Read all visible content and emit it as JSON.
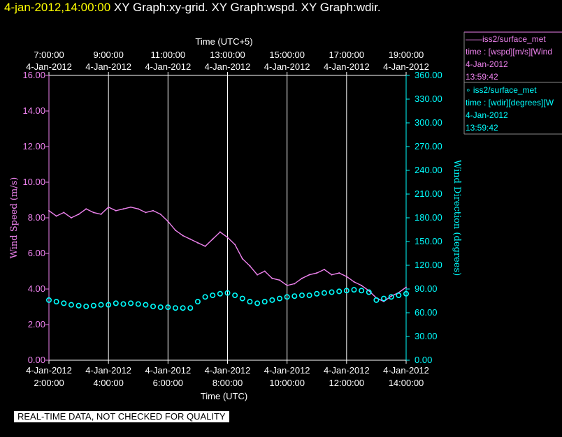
{
  "title": {
    "timestamp": "4-jan-2012,14:00:00",
    "graphs": "XY Graph:xy-grid.  XY Graph:wspd.  XY Graph:wdir."
  },
  "legend": [
    {
      "line": "——iss2/surface_met",
      "var": "time : [wspd][m/s][Wind",
      "date": "4-Jan-2012",
      "time": "13:59:42",
      "color": "#ee82ee"
    },
    {
      "line": "∘ iss2/surface_met",
      "var": "time : [wdir][degrees][W",
      "date": "4-Jan-2012",
      "time": "13:59:42",
      "color": "#00ffff"
    }
  ],
  "footer": "REAL-TIME DATA, NOT CHECKED FOR QUALITY",
  "chart_data": {
    "type": "line",
    "x_unit": "hours UTC, 4-Jan-2012",
    "xlim": [
      2.0,
      14.0
    ],
    "top_axis": {
      "label": "Time (UTC+5)",
      "ticks": [
        {
          "x": 2,
          "time": "7:00:00",
          "date": "4-Jan-2012"
        },
        {
          "x": 4,
          "time": "9:00:00",
          "date": "4-Jan-2012"
        },
        {
          "x": 6,
          "time": "11:00:00",
          "date": "4-Jan-2012"
        },
        {
          "x": 8,
          "time": "13:00:00",
          "date": "4-Jan-2012"
        },
        {
          "x": 10,
          "time": "15:00:00",
          "date": "4-Jan-2012"
        },
        {
          "x": 12,
          "time": "17:00:00",
          "date": "4-Jan-2012"
        },
        {
          "x": 14,
          "time": "19:00:00",
          "date": "4-Jan-2012"
        }
      ]
    },
    "bottom_axis": {
      "label": "Time (UTC)",
      "ticks": [
        {
          "x": 2,
          "date": "4-Jan-2012",
          "time": "2:00:00"
        },
        {
          "x": 4,
          "date": "4-Jan-2012",
          "time": "4:00:00"
        },
        {
          "x": 6,
          "date": "4-Jan-2012",
          "time": "6:00:00"
        },
        {
          "x": 8,
          "date": "4-Jan-2012",
          "time": "8:00:00"
        },
        {
          "x": 10,
          "date": "4-Jan-2012",
          "time": "10:00:00"
        },
        {
          "x": 12,
          "date": "4-Jan-2012",
          "time": "12:00:00"
        },
        {
          "x": 14,
          "date": "4-Jan-2012",
          "time": "14:00:00"
        }
      ]
    },
    "left_axis": {
      "label": "Wind Speed (m/s)",
      "ylim": [
        0,
        16
      ],
      "ticks": [
        "0.00",
        "2.00",
        "4.00",
        "6.00",
        "8.00",
        "10.00",
        "12.00",
        "14.00",
        "16.00"
      ],
      "color": "#ee82ee"
    },
    "right_axis": {
      "label": "Wind Direction (degrees)",
      "ylim": [
        0,
        360
      ],
      "ticks": [
        "0.00",
        "30.00",
        "60.00",
        "90.00",
        "120.00",
        "150.00",
        "180.00",
        "210.00",
        "240.00",
        "270.00",
        "300.00",
        "330.00",
        "360.00"
      ],
      "color": "#00ffff"
    },
    "grid": "vertical",
    "series": [
      {
        "name": "iss2/surface_met wspd",
        "axis": "left",
        "style": "line",
        "color": "#ee82ee",
        "x": [
          2.0,
          2.25,
          2.5,
          2.75,
          3.0,
          3.25,
          3.5,
          3.75,
          4.0,
          4.25,
          4.5,
          4.75,
          5.0,
          5.25,
          5.5,
          5.75,
          6.0,
          6.25,
          6.5,
          6.75,
          7.0,
          7.25,
          7.5,
          7.75,
          8.0,
          8.25,
          8.5,
          8.75,
          9.0,
          9.25,
          9.5,
          9.75,
          10.0,
          10.25,
          10.5,
          10.75,
          11.0,
          11.25,
          11.5,
          11.75,
          12.0,
          12.25,
          12.5,
          12.75,
          13.0,
          13.25,
          13.5,
          13.75,
          14.0
        ],
        "values": [
          8.4,
          8.1,
          8.3,
          8.0,
          8.2,
          8.5,
          8.3,
          8.2,
          8.6,
          8.4,
          8.5,
          8.6,
          8.5,
          8.3,
          8.4,
          8.2,
          7.8,
          7.3,
          7.0,
          6.8,
          6.6,
          6.4,
          6.8,
          7.2,
          6.9,
          6.5,
          5.7,
          5.3,
          4.8,
          5.0,
          4.6,
          4.5,
          4.2,
          4.3,
          4.6,
          4.8,
          4.9,
          5.1,
          4.8,
          4.9,
          4.7,
          4.4,
          4.2,
          3.9,
          3.5,
          3.3,
          3.6,
          3.8,
          4.1
        ]
      },
      {
        "name": "iss2/surface_met wdir",
        "axis": "right",
        "style": "markers",
        "color": "#00ffff",
        "x": [
          2.0,
          2.25,
          2.5,
          2.75,
          3.0,
          3.25,
          3.5,
          3.75,
          4.0,
          4.25,
          4.5,
          4.75,
          5.0,
          5.25,
          5.5,
          5.75,
          6.0,
          6.25,
          6.5,
          6.75,
          7.0,
          7.25,
          7.5,
          7.75,
          8.0,
          8.25,
          8.5,
          8.75,
          9.0,
          9.25,
          9.5,
          9.75,
          10.0,
          10.25,
          10.5,
          10.75,
          11.0,
          11.25,
          11.5,
          11.75,
          12.0,
          12.25,
          12.5,
          12.75,
          13.0,
          13.25,
          13.5,
          13.75,
          14.0
        ],
        "values": [
          76,
          74,
          72,
          70,
          69,
          68,
          69,
          70,
          70,
          72,
          71,
          72,
          71,
          70,
          68,
          67,
          67,
          66,
          66,
          66,
          74,
          80,
          82,
          84,
          85,
          82,
          78,
          74,
          72,
          74,
          76,
          78,
          80,
          81,
          82,
          82,
          84,
          85,
          86,
          87,
          88,
          89,
          88,
          86,
          76,
          78,
          80,
          82,
          84
        ]
      }
    ]
  }
}
